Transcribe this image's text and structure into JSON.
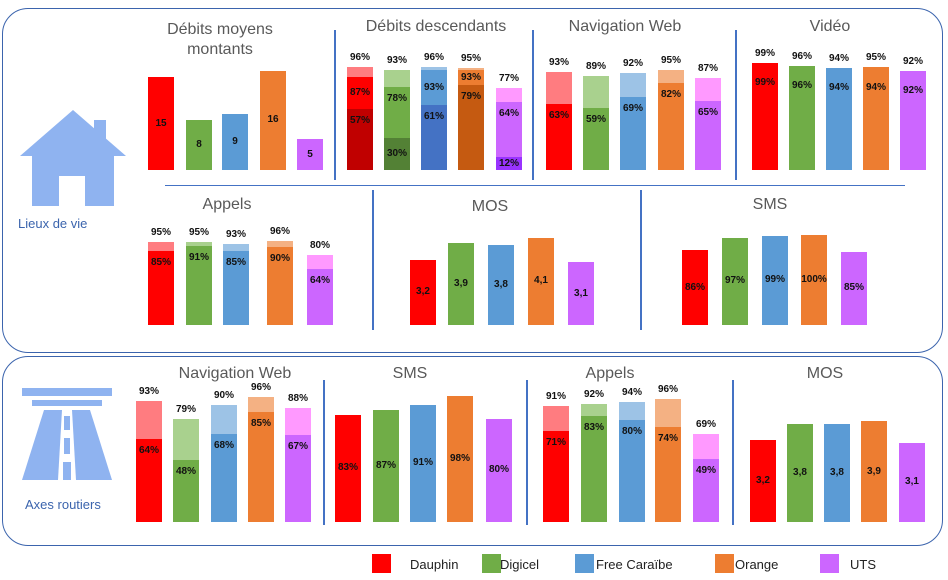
{
  "sections": {
    "home": "Lieux de vie",
    "road": "Axes routiers"
  },
  "legend": [
    {
      "label": "Dauphin",
      "color": "#ff0000"
    },
    {
      "label": "Digicel",
      "color": "#70ad47"
    },
    {
      "label": "Free Caraïbe",
      "color": "#5b9bd5"
    },
    {
      "label": "Orange",
      "color": "#ed7d31"
    },
    {
      "label": "UTS",
      "color": "#cc66ff"
    }
  ],
  "palette": {
    "base": [
      "#ff0000",
      "#70ad47",
      "#5b9bd5",
      "#ed7d31",
      "#cc66ff"
    ],
    "light": [
      "#ff7c80",
      "#a9d18e",
      "#9dc3e6",
      "#f4b183",
      "#ff99ff"
    ],
    "dark": [
      "#c00000",
      "#538135",
      "#4472c4",
      "#c55a11",
      "#9933ff"
    ]
  },
  "chart_data": [
    {
      "section": "Lieux de vie",
      "title": "Débits moyens montants",
      "type": "bar",
      "categories": [
        "Dauphin",
        "Digicel",
        "Free Caraïbe",
        "Orange",
        "UTS"
      ],
      "values": [
        15,
        8,
        9,
        16,
        5
      ],
      "unit": ""
    },
    {
      "section": "Lieux de vie",
      "title": "Débits descendants",
      "type": "stacked-bar",
      "categories": [
        "Dauphin",
        "Digicel",
        "Free Caraïbe",
        "Orange",
        "UTS"
      ],
      "layers": [
        [
          96,
          93,
          96,
          95,
          77
        ],
        [
          87,
          78,
          93,
          93,
          64
        ],
        [
          57,
          30,
          61,
          79,
          12
        ]
      ],
      "unit": "%"
    },
    {
      "section": "Lieux de vie",
      "title": "Navigation Web",
      "type": "stacked-bar",
      "categories": [
        "Dauphin",
        "Digicel",
        "Free Caraïbe",
        "Orange",
        "UTS"
      ],
      "layers": [
        [
          93,
          89,
          92,
          95,
          87
        ],
        [
          63,
          59,
          69,
          82,
          65
        ]
      ],
      "unit": "%"
    },
    {
      "section": "Lieux de vie",
      "title": "Vidéo",
      "type": "stacked-bar",
      "categories": [
        "Dauphin",
        "Digicel",
        "Free Caraïbe",
        "Orange",
        "UTS"
      ],
      "layers": [
        [
          99,
          96,
          94,
          95,
          92
        ],
        [
          99,
          96,
          94,
          94,
          92
        ]
      ],
      "unit": "%"
    },
    {
      "section": "Lieux de vie",
      "title": "Appels",
      "type": "stacked-bar",
      "categories": [
        "Dauphin",
        "Digicel",
        "Free Caraïbe",
        "Orange",
        "UTS"
      ],
      "layers": [
        [
          95,
          95,
          93,
          96,
          80
        ],
        [
          85,
          91,
          85,
          90,
          64
        ]
      ],
      "unit": "%"
    },
    {
      "section": "Lieux de vie",
      "title": "MOS",
      "type": "bar",
      "categories": [
        "Dauphin",
        "Digicel",
        "Free Caraïbe",
        "Orange",
        "UTS"
      ],
      "values": [
        3.2,
        3.9,
        3.8,
        4.1,
        3.1
      ],
      "unit": ""
    },
    {
      "section": "Lieux de vie",
      "title": "SMS",
      "type": "bar",
      "categories": [
        "Dauphin",
        "Digicel",
        "Free Caraïbe",
        "Orange",
        "UTS"
      ],
      "values": [
        86,
        97,
        99,
        100,
        85
      ],
      "unit": "%"
    },
    {
      "section": "Axes routiers",
      "title": "Navigation Web",
      "type": "stacked-bar",
      "categories": [
        "Dauphin",
        "Digicel",
        "Free Caraïbe",
        "Orange",
        "UTS"
      ],
      "layers": [
        [
          93,
          79,
          90,
          96,
          88
        ],
        [
          64,
          48,
          68,
          85,
          67
        ]
      ],
      "unit": "%"
    },
    {
      "section": "Axes routiers",
      "title": "SMS",
      "type": "bar",
      "categories": [
        "Dauphin",
        "Digicel",
        "Free Caraïbe",
        "Orange",
        "UTS"
      ],
      "values": [
        83,
        87,
        91,
        98,
        80
      ],
      "unit": "%"
    },
    {
      "section": "Axes routiers",
      "title": "Appels",
      "type": "stacked-bar",
      "categories": [
        "Dauphin",
        "Digicel",
        "Free Caraïbe",
        "Orange",
        "UTS"
      ],
      "layers": [
        [
          91,
          92,
          94,
          96,
          69
        ],
        [
          71,
          83,
          80,
          74,
          49
        ]
      ],
      "unit": "%"
    },
    {
      "section": "Axes routiers",
      "title": "MOS",
      "type": "bar",
      "categories": [
        "Dauphin",
        "Digicel",
        "Free Caraïbe",
        "Orange",
        "UTS"
      ],
      "values": [
        3.2,
        3.8,
        3.8,
        3.9,
        3.1
      ],
      "unit": ""
    }
  ]
}
